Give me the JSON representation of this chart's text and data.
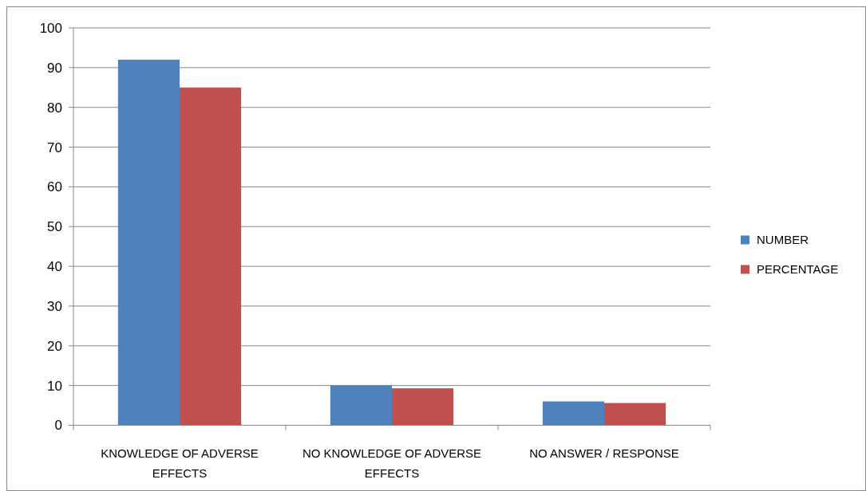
{
  "chart_data": {
    "type": "bar",
    "categories": [
      "KNOWLEDGE OF ADVERSE EFFECTS",
      "NO KNOWLEDGE OF ADVERSE EFFECTS",
      "NO ANSWER / RESPONSE"
    ],
    "series": [
      {
        "name": "NUMBER",
        "color": "#4f81bd",
        "values": [
          92,
          10,
          6
        ]
      },
      {
        "name": "PERCENTAGE",
        "color": "#c0504d",
        "values": [
          85,
          9.3,
          5.6
        ]
      }
    ],
    "ylim": [
      0,
      100
    ],
    "yticks": [
      0,
      10,
      20,
      30,
      40,
      50,
      60,
      70,
      80,
      90,
      100
    ],
    "grid": "y",
    "legend": "right"
  }
}
